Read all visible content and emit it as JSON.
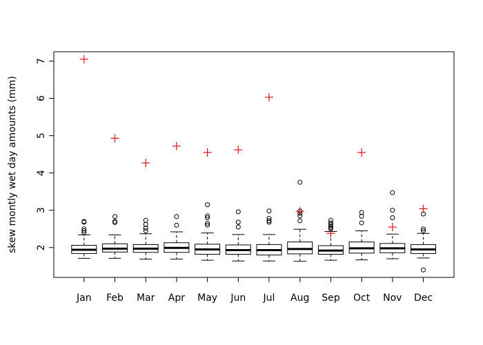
{
  "chart_data": {
    "type": "box",
    "ylabel": "skew montly wet day amounts (mm)",
    "xlabel": "",
    "title": "",
    "ylim": [
      1.2,
      7.25
    ],
    "yticks": [
      2,
      3,
      4,
      5,
      6,
      7
    ],
    "categories": [
      "Jan",
      "Feb",
      "Mar",
      "Apr",
      "May",
      "Jun",
      "Jul",
      "Aug",
      "Sep",
      "Oct",
      "Nov",
      "Dec"
    ],
    "boxes": [
      {
        "whisker_low": 1.71,
        "q1": 1.84,
        "median": 1.94,
        "q3": 2.06,
        "whisker_high": 2.34,
        "outliers": [
          2.4,
          2.45,
          2.5,
          2.68,
          2.7
        ]
      },
      {
        "whisker_low": 1.71,
        "q1": 1.88,
        "median": 1.97,
        "q3": 2.1,
        "whisker_high": 2.34,
        "outliers": [
          2.67,
          2.7,
          2.83
        ]
      },
      {
        "whisker_low": 1.69,
        "q1": 1.87,
        "median": 1.97,
        "q3": 2.08,
        "whisker_high": 2.37,
        "outliers": [
          2.45,
          2.52,
          2.62,
          2.73
        ]
      },
      {
        "whisker_low": 1.69,
        "q1": 1.87,
        "median": 1.99,
        "q3": 2.13,
        "whisker_high": 2.42,
        "outliers": [
          2.6,
          2.83
        ]
      },
      {
        "whisker_low": 1.66,
        "q1": 1.82,
        "median": 1.95,
        "q3": 2.09,
        "whisker_high": 2.39,
        "outliers": [
          2.6,
          2.65,
          2.8,
          2.85,
          3.15
        ]
      },
      {
        "whisker_low": 1.64,
        "q1": 1.82,
        "median": 1.93,
        "q3": 2.07,
        "whisker_high": 2.35,
        "outliers": [
          2.55,
          2.68,
          2.96
        ]
      },
      {
        "whisker_low": 1.64,
        "q1": 1.8,
        "median": 1.93,
        "q3": 2.08,
        "whisker_high": 2.35,
        "outliers": [
          2.68,
          2.72,
          2.78,
          2.98
        ]
      },
      {
        "whisker_low": 1.63,
        "q1": 1.83,
        "median": 1.96,
        "q3": 2.15,
        "whisker_high": 2.49,
        "outliers": [
          2.72,
          2.85,
          2.92,
          2.98,
          3.75
        ]
      },
      {
        "whisker_low": 1.66,
        "q1": 1.82,
        "median": 1.92,
        "q3": 2.05,
        "whisker_high": 2.43,
        "outliers": [
          2.5,
          2.53,
          2.57,
          2.61,
          2.66,
          2.73
        ]
      },
      {
        "whisker_low": 1.67,
        "q1": 1.85,
        "median": 1.98,
        "q3": 2.15,
        "whisker_high": 2.45,
        "outliers": [
          2.66,
          2.84,
          2.94
        ]
      },
      {
        "whisker_low": 1.7,
        "q1": 1.86,
        "median": 1.98,
        "q3": 2.11,
        "whisker_high": 2.36,
        "outliers": [
          2.8,
          3.0,
          3.47
        ]
      },
      {
        "whisker_low": 1.72,
        "q1": 1.84,
        "median": 1.95,
        "q3": 2.08,
        "whisker_high": 2.38,
        "outliers": [
          2.45,
          2.5,
          2.9,
          1.4
        ]
      }
    ],
    "plus_points": {
      "color": "#dd1111",
      "values": [
        7.05,
        4.93,
        4.27,
        4.72,
        4.55,
        4.62,
        6.03,
        2.97,
        2.38,
        4.55,
        2.55,
        3.04
      ]
    },
    "box_color": "#000000",
    "grid": false,
    "legend": "none"
  }
}
